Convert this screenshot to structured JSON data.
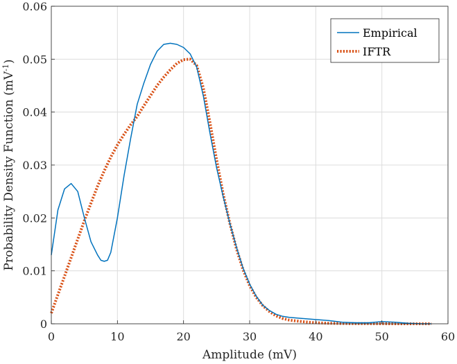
{
  "chart_data": {
    "type": "line",
    "title": "",
    "xlabel": "Amplitude (mV)",
    "ylabel_main": "Probability Density Function (mV",
    "ylabel_sup": "-1",
    "ylabel_close": ")",
    "xlim": [
      0,
      60
    ],
    "ylim": [
      0,
      0.06
    ],
    "xticks": [
      0,
      10,
      20,
      30,
      40,
      50,
      60
    ],
    "xtick_labels": [
      "0",
      "10",
      "20",
      "30",
      "40",
      "50",
      "60"
    ],
    "yticks": [
      0,
      0.01,
      0.02,
      0.03,
      0.04,
      0.05,
      0.06
    ],
    "ytick_labels": [
      "0",
      "0.01",
      "0.02",
      "0.03",
      "0.04",
      "0.05",
      "0.06"
    ],
    "grid": true,
    "legend_position": "top-right",
    "series": [
      {
        "name": "Empirical",
        "color": "#0072BD",
        "style": "solid",
        "x": [
          0,
          1,
          2,
          3,
          4,
          5,
          6,
          7,
          7.5,
          8,
          8.5,
          9,
          10,
          11,
          12,
          13,
          14,
          15,
          16,
          17,
          18,
          19,
          20,
          21,
          22,
          23,
          24,
          25,
          26,
          27,
          28,
          29,
          30,
          31,
          32,
          33,
          34,
          35,
          36,
          38,
          40,
          42,
          44,
          46,
          48,
          50,
          52,
          54,
          56,
          57.5
        ],
        "y": [
          0.013,
          0.0215,
          0.0255,
          0.0265,
          0.025,
          0.02,
          0.0155,
          0.013,
          0.012,
          0.0118,
          0.012,
          0.0135,
          0.02,
          0.028,
          0.035,
          0.0415,
          0.0455,
          0.049,
          0.0515,
          0.0528,
          0.053,
          0.0528,
          0.0522,
          0.051,
          0.0485,
          0.043,
          0.036,
          0.0295,
          0.024,
          0.019,
          0.0145,
          0.0105,
          0.0075,
          0.0052,
          0.0035,
          0.0025,
          0.0018,
          0.0014,
          0.0012,
          0.001,
          0.0008,
          0.0006,
          0.0003,
          0.0002,
          0.0002,
          0.0004,
          0.0003,
          0.0001,
          0,
          0
        ]
      },
      {
        "name": "IFTR",
        "color": "#D95319",
        "style": "dotted",
        "x": [
          0,
          1,
          2,
          3,
          4,
          5,
          6,
          7,
          8,
          9,
          10,
          11,
          12,
          13,
          14,
          15,
          16,
          17,
          18,
          19,
          20,
          21,
          22,
          23,
          24,
          25,
          26,
          27,
          28,
          29,
          30,
          31,
          32,
          33,
          34,
          35,
          36,
          38,
          40,
          42,
          44,
          46,
          48,
          50,
          52,
          54,
          56,
          57.5
        ],
        "y": [
          0.002,
          0.0055,
          0.009,
          0.0125,
          0.016,
          0.0195,
          0.0228,
          0.026,
          0.0289,
          0.0315,
          0.0338,
          0.0358,
          0.0376,
          0.0392,
          0.0412,
          0.0431,
          0.045,
          0.0466,
          0.048,
          0.0492,
          0.0499,
          0.05,
          0.0488,
          0.0445,
          0.038,
          0.031,
          0.0245,
          0.019,
          0.0142,
          0.0102,
          0.0072,
          0.005,
          0.0034,
          0.0023,
          0.0015,
          0.001,
          0.0007,
          0.0004,
          0.0002,
          0.0001,
          5e-05,
          3e-05,
          2e-05,
          1e-05,
          0,
          0,
          0,
          0
        ]
      }
    ]
  }
}
